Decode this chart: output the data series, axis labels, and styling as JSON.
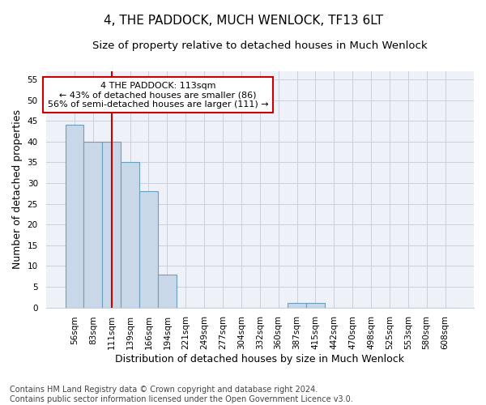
{
  "title": "4, THE PADDOCK, MUCH WENLOCK, TF13 6LT",
  "subtitle": "Size of property relative to detached houses in Much Wenlock",
  "xlabel": "Distribution of detached houses by size in Much Wenlock",
  "ylabel": "Number of detached properties",
  "footer_line1": "Contains HM Land Registry data © Crown copyright and database right 2024.",
  "footer_line2": "Contains public sector information licensed under the Open Government Licence v3.0.",
  "categories": [
    "56sqm",
    "83sqm",
    "111sqm",
    "139sqm",
    "166sqm",
    "194sqm",
    "221sqm",
    "249sqm",
    "277sqm",
    "304sqm",
    "332sqm",
    "360sqm",
    "387sqm",
    "415sqm",
    "442sqm",
    "470sqm",
    "498sqm",
    "525sqm",
    "553sqm",
    "580sqm",
    "608sqm"
  ],
  "values": [
    44,
    40,
    40,
    35,
    28,
    8,
    0,
    0,
    0,
    0,
    0,
    0,
    1,
    1,
    0,
    0,
    0,
    0,
    0,
    0,
    0
  ],
  "bar_color": "#c8d8e8",
  "bar_edgecolor": "#6a9fc0",
  "bar_linewidth": 0.8,
  "vline_x_index": 2,
  "vline_color": "#cc0000",
  "vline_linewidth": 1.5,
  "annotation_text": "4 THE PADDOCK: 113sqm\n← 43% of detached houses are smaller (86)\n56% of semi-detached houses are larger (111) →",
  "annotation_box_facecolor": "white",
  "annotation_box_edgecolor": "#cc0000",
  "ylim": [
    0,
    57
  ],
  "yticks": [
    0,
    5,
    10,
    15,
    20,
    25,
    30,
    35,
    40,
    45,
    50,
    55
  ],
  "grid_color": "#c8d0dc",
  "background_color": "#eef2f8",
  "fig_facecolor": "white",
  "title_fontsize": 11,
  "subtitle_fontsize": 9.5,
  "xlabel_fontsize": 9,
  "ylabel_fontsize": 9,
  "tick_fontsize": 7.5,
  "footer_fontsize": 7
}
